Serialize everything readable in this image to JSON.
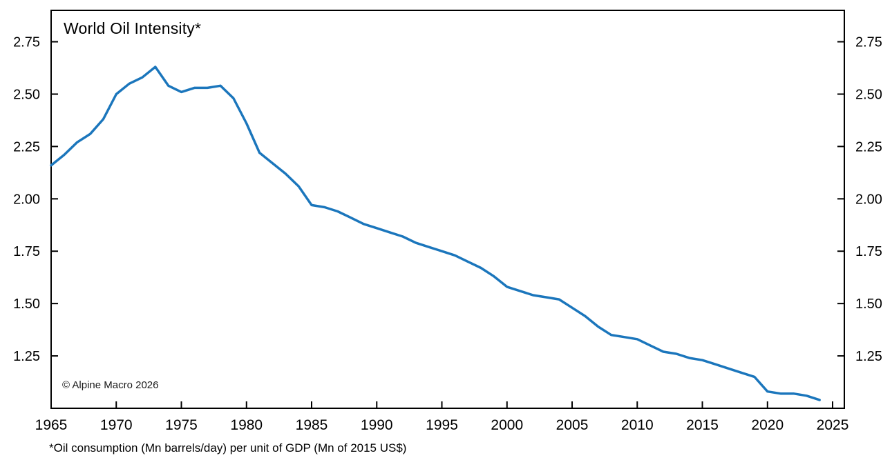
{
  "page": {
    "background": "#ffffff"
  },
  "chart_data": {
    "type": "line",
    "title": "World Oil Intensity*",
    "watermark": "© Alpine Macro 2026",
    "footnote": "*Oil consumption (Mn barrels/day) per unit of GDP (Mn of 2015 US$)",
    "grid": false,
    "legend": "none",
    "axis_color": "#000000",
    "xlim": [
      1965,
      2025.9
    ],
    "ylim": [
      1.0,
      2.9
    ],
    "x_ticks": [
      1965,
      1970,
      1975,
      1980,
      1985,
      1990,
      1995,
      2000,
      2005,
      2010,
      2015,
      2020,
      2025
    ],
    "x_tick_labels": [
      "1965",
      "1970",
      "1975",
      "1980",
      "1985",
      "1990",
      "1995",
      "2000",
      "2005",
      "2010",
      "2015",
      "2020",
      "2025"
    ],
    "y_ticks": [
      1.25,
      1.5,
      1.75,
      2.0,
      2.25,
      2.5,
      2.75
    ],
    "y_tick_labels": [
      "1.25",
      "1.50",
      "1.75",
      "2.00",
      "2.25",
      "2.50",
      "2.75"
    ],
    "y_axis_sides": [
      "left",
      "right"
    ],
    "series": [
      {
        "name": "World oil intensity",
        "color": "#1b76bc",
        "x": [
          1965,
          1966,
          1967,
          1968,
          1969,
          1970,
          1971,
          1972,
          1973,
          1974,
          1975,
          1976,
          1977,
          1978,
          1979,
          1980,
          1981,
          1982,
          1983,
          1984,
          1985,
          1986,
          1987,
          1988,
          1989,
          1990,
          1991,
          1992,
          1993,
          1994,
          1995,
          1996,
          1997,
          1998,
          1999,
          2000,
          2001,
          2002,
          2003,
          2004,
          2005,
          2006,
          2007,
          2008,
          2009,
          2010,
          2011,
          2012,
          2013,
          2014,
          2015,
          2016,
          2017,
          2018,
          2019,
          2020,
          2021,
          2022,
          2023,
          2024
        ],
        "values": [
          2.16,
          2.21,
          2.27,
          2.31,
          2.38,
          2.5,
          2.55,
          2.58,
          2.63,
          2.54,
          2.51,
          2.53,
          2.53,
          2.54,
          2.48,
          2.36,
          2.22,
          2.17,
          2.12,
          2.06,
          1.97,
          1.96,
          1.94,
          1.91,
          1.88,
          1.86,
          1.84,
          1.82,
          1.79,
          1.77,
          1.75,
          1.73,
          1.7,
          1.67,
          1.63,
          1.58,
          1.56,
          1.54,
          1.53,
          1.52,
          1.48,
          1.44,
          1.39,
          1.35,
          1.34,
          1.33,
          1.3,
          1.27,
          1.26,
          1.24,
          1.23,
          1.21,
          1.19,
          1.17,
          1.15,
          1.08,
          1.07,
          1.07,
          1.06,
          1.04
        ]
      }
    ]
  }
}
